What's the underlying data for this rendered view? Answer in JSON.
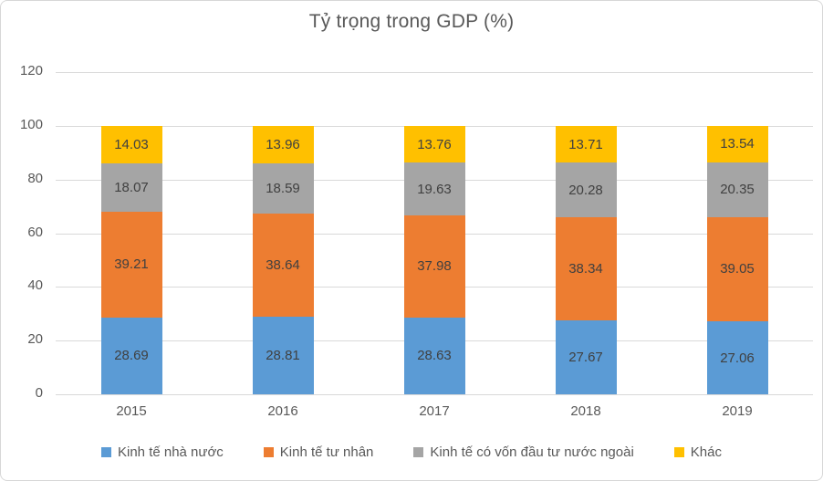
{
  "chart_data": {
    "type": "bar",
    "stacked": true,
    "title": "Tỷ trọng trong GDP (%)",
    "categories": [
      "2015",
      "2016",
      "2017",
      "2018",
      "2019"
    ],
    "series": [
      {
        "name": "Kinh tế nhà nước",
        "color": "#5B9BD5",
        "values": [
          28.69,
          28.81,
          28.63,
          27.67,
          27.06
        ]
      },
      {
        "name": "Kinh tế tư nhân",
        "color": "#ED7D31",
        "values": [
          39.21,
          38.64,
          37.98,
          38.34,
          39.05
        ]
      },
      {
        "name": "Kinh tế có vốn đầu tư nước ngoài",
        "color": "#A5A5A5",
        "values": [
          18.07,
          18.59,
          19.63,
          20.28,
          20.35
        ]
      },
      {
        "name": "Khác",
        "color": "#FFC000",
        "values": [
          14.03,
          13.96,
          13.76,
          13.71,
          13.54
        ]
      }
    ],
    "xlabel": "",
    "ylabel": "",
    "ylim": [
      0,
      120
    ],
    "yticks": [
      0,
      20,
      40,
      60,
      80,
      100,
      120
    ],
    "grid": true,
    "legend_position": "bottom",
    "data_labels": true
  },
  "style": {
    "gridline_color": "#D9D9D9",
    "axis_text_color": "#595959",
    "title_color": "#595959",
    "data_label_color": "#404040",
    "frame_border_color": "#D7D7D7",
    "background": "#FFFFFF"
  }
}
